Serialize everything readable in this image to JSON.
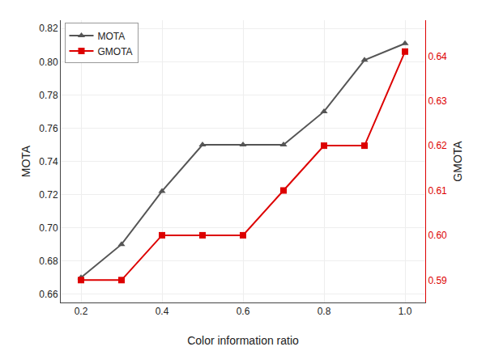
{
  "chart_data": {
    "type": "line",
    "x": [
      0.2,
      0.3,
      0.4,
      0.5,
      0.6,
      0.7,
      0.8,
      0.9,
      1.0
    ],
    "series": [
      {
        "name": "MOTA",
        "color": "#555555",
        "marker": "triangle-up",
        "axis": "y",
        "values": [
          0.67,
          0.69,
          0.722,
          0.75,
          0.75,
          0.75,
          0.77,
          0.801,
          0.811
        ]
      },
      {
        "name": "GMOTA",
        "color": "#dd0000",
        "marker": "square",
        "axis": "y2",
        "values": [
          0.59,
          0.59,
          0.6,
          0.6,
          0.6,
          0.61,
          0.62,
          0.62,
          0.641
        ]
      }
    ],
    "xlabel": "Color information ratio",
    "ylabel": "MOTA",
    "y2label": "GMOTA",
    "xlim": [
      0.15,
      1.05
    ],
    "xticks": [
      0.2,
      0.4,
      0.6,
      0.8,
      {
        "value": 1.0,
        "label": "1.0"
      }
    ],
    "ylim": [
      0.655,
      0.825
    ],
    "yticks": [
      0.66,
      0.68,
      {
        "value": 0.7,
        "label": "0.70"
      },
      0.72,
      0.74,
      0.76,
      0.78,
      {
        "value": 0.8,
        "label": "0.80"
      },
      0.82
    ],
    "y2lim": [
      0.585,
      0.648
    ],
    "y2ticks": [
      0.59,
      {
        "value": 0.6,
        "label": "0.60"
      },
      0.61,
      0.62,
      0.63,
      0.64
    ],
    "grid": true,
    "legend": "upper left"
  }
}
